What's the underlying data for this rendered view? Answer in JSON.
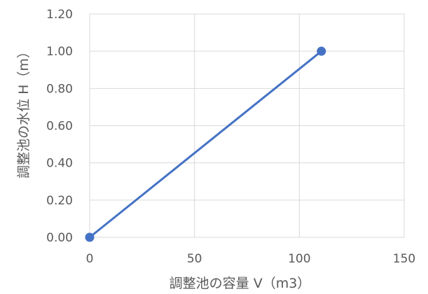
{
  "chart_data": {
    "type": "scatter",
    "title": "",
    "xlabel": "調整池の容量 V（m3）",
    "ylabel": "調整池の水位 H（m）",
    "xlim": [
      0,
      150
    ],
    "ylim": [
      0,
      1.2
    ],
    "x_ticks": [
      0,
      50,
      100,
      150
    ],
    "y_ticks": [
      0,
      0.2,
      0.4,
      0.6,
      0.8,
      1.0,
      1.2
    ],
    "x_tick_labels": [
      "0",
      "50",
      "100",
      "150"
    ],
    "y_tick_labels": [
      "0.00",
      "0.20",
      "0.40",
      "0.60",
      "0.80",
      "1.00",
      "1.20"
    ],
    "grid": true,
    "legend": "none",
    "series": [
      {
        "x": [
          0,
          110.5
        ],
        "y": [
          0.0,
          1.0
        ],
        "color": "#4472C4",
        "marker": "circle",
        "line": "straight"
      }
    ]
  }
}
